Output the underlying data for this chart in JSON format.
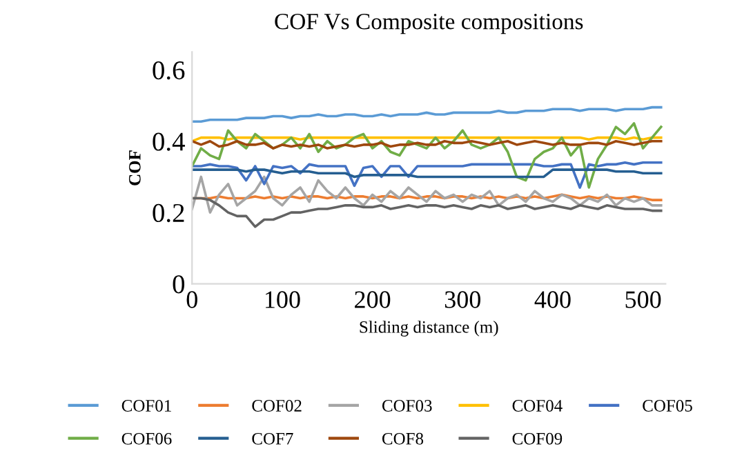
{
  "chart_data": {
    "type": "line",
    "title": "COF Vs Composite compositions",
    "xlabel": "Sliding distance (m)",
    "ylabel": "COF",
    "xlim": [
      0,
      525
    ],
    "xticks": [
      0,
      100,
      200,
      300,
      400,
      500
    ],
    "ylim": [
      0,
      0.65
    ],
    "yticks": [
      0,
      0.2,
      0.4,
      0.6
    ],
    "grid": false,
    "legend": "bottom",
    "marker": "none",
    "line_style": "solid",
    "x": [
      0,
      10,
      20,
      30,
      40,
      50,
      60,
      70,
      80,
      90,
      100,
      110,
      120,
      130,
      140,
      150,
      160,
      170,
      180,
      190,
      200,
      210,
      220,
      230,
      240,
      250,
      260,
      270,
      280,
      290,
      300,
      310,
      320,
      330,
      340,
      350,
      360,
      370,
      380,
      390,
      400,
      410,
      420,
      430,
      440,
      450,
      460,
      470,
      480,
      490,
      500,
      510,
      520
    ],
    "series": [
      {
        "name": "COF01",
        "color": "#5b9bd5",
        "values": [
          0.455,
          0.455,
          0.46,
          0.46,
          0.46,
          0.46,
          0.465,
          0.465,
          0.465,
          0.47,
          0.47,
          0.465,
          0.47,
          0.47,
          0.475,
          0.47,
          0.47,
          0.475,
          0.475,
          0.47,
          0.47,
          0.475,
          0.47,
          0.475,
          0.475,
          0.475,
          0.48,
          0.475,
          0.475,
          0.48,
          0.48,
          0.48,
          0.48,
          0.48,
          0.485,
          0.48,
          0.48,
          0.485,
          0.485,
          0.485,
          0.49,
          0.49,
          0.49,
          0.485,
          0.49,
          0.49,
          0.49,
          0.485,
          0.49,
          0.49,
          0.49,
          0.495,
          0.495
        ]
      },
      {
        "name": "COF02",
        "color": "#ed7d31",
        "values": [
          0.24,
          0.24,
          0.24,
          0.245,
          0.24,
          0.24,
          0.24,
          0.245,
          0.24,
          0.245,
          0.24,
          0.245,
          0.24,
          0.245,
          0.245,
          0.24,
          0.245,
          0.24,
          0.245,
          0.245,
          0.24,
          0.245,
          0.245,
          0.24,
          0.245,
          0.24,
          0.245,
          0.245,
          0.24,
          0.245,
          0.245,
          0.24,
          0.245,
          0.24,
          0.245,
          0.24,
          0.245,
          0.24,
          0.245,
          0.24,
          0.245,
          0.25,
          0.245,
          0.24,
          0.245,
          0.24,
          0.245,
          0.24,
          0.24,
          0.245,
          0.24,
          0.235,
          0.235
        ]
      },
      {
        "name": "COF03",
        "color": "#a5a5a5",
        "values": [
          0.21,
          0.3,
          0.2,
          0.25,
          0.28,
          0.22,
          0.24,
          0.26,
          0.3,
          0.24,
          0.22,
          0.25,
          0.27,
          0.23,
          0.29,
          0.26,
          0.24,
          0.27,
          0.24,
          0.22,
          0.25,
          0.23,
          0.26,
          0.24,
          0.27,
          0.25,
          0.23,
          0.26,
          0.24,
          0.25,
          0.23,
          0.25,
          0.24,
          0.26,
          0.22,
          0.24,
          0.25,
          0.23,
          0.26,
          0.24,
          0.23,
          0.25,
          0.24,
          0.22,
          0.24,
          0.23,
          0.25,
          0.22,
          0.24,
          0.23,
          0.24,
          0.22,
          0.22
        ]
      },
      {
        "name": "COF04",
        "color": "#ffc000",
        "values": [
          0.4,
          0.41,
          0.41,
          0.41,
          0.405,
          0.41,
          0.41,
          0.41,
          0.41,
          0.41,
          0.41,
          0.41,
          0.405,
          0.41,
          0.41,
          0.41,
          0.41,
          0.41,
          0.41,
          0.41,
          0.41,
          0.41,
          0.41,
          0.41,
          0.41,
          0.41,
          0.41,
          0.41,
          0.41,
          0.41,
          0.41,
          0.41,
          0.41,
          0.41,
          0.41,
          0.41,
          0.41,
          0.41,
          0.41,
          0.41,
          0.41,
          0.41,
          0.41,
          0.41,
          0.405,
          0.41,
          0.41,
          0.41,
          0.405,
          0.41,
          0.405,
          0.41,
          0.41
        ]
      },
      {
        "name": "COF05",
        "color": "#4472c4",
        "values": [
          0.33,
          0.33,
          0.335,
          0.33,
          0.33,
          0.325,
          0.29,
          0.33,
          0.28,
          0.33,
          0.325,
          0.33,
          0.31,
          0.335,
          0.33,
          0.33,
          0.33,
          0.33,
          0.275,
          0.325,
          0.33,
          0.3,
          0.33,
          0.33,
          0.3,
          0.33,
          0.33,
          0.33,
          0.33,
          0.33,
          0.33,
          0.335,
          0.335,
          0.335,
          0.335,
          0.335,
          0.335,
          0.335,
          0.335,
          0.33,
          0.33,
          0.335,
          0.335,
          0.27,
          0.335,
          0.33,
          0.335,
          0.335,
          0.34,
          0.335,
          0.34,
          0.34,
          0.34
        ]
      },
      {
        "name": "COF06",
        "color": "#70ad47",
        "values": [
          0.33,
          0.38,
          0.36,
          0.35,
          0.43,
          0.4,
          0.38,
          0.42,
          0.4,
          0.38,
          0.39,
          0.41,
          0.38,
          0.42,
          0.37,
          0.4,
          0.38,
          0.39,
          0.41,
          0.42,
          0.38,
          0.4,
          0.37,
          0.36,
          0.4,
          0.39,
          0.38,
          0.41,
          0.38,
          0.4,
          0.43,
          0.39,
          0.38,
          0.39,
          0.41,
          0.37,
          0.3,
          0.29,
          0.35,
          0.37,
          0.38,
          0.41,
          0.36,
          0.39,
          0.27,
          0.35,
          0.39,
          0.44,
          0.42,
          0.45,
          0.38,
          0.41,
          0.44
        ]
      },
      {
        "name": "COF7",
        "color": "#255e91",
        "values": [
          0.32,
          0.32,
          0.32,
          0.32,
          0.32,
          0.32,
          0.315,
          0.32,
          0.32,
          0.315,
          0.31,
          0.315,
          0.315,
          0.315,
          0.31,
          0.31,
          0.31,
          0.31,
          0.3,
          0.305,
          0.305,
          0.305,
          0.305,
          0.305,
          0.305,
          0.3,
          0.3,
          0.3,
          0.3,
          0.3,
          0.3,
          0.3,
          0.3,
          0.3,
          0.3,
          0.3,
          0.3,
          0.3,
          0.3,
          0.3,
          0.32,
          0.32,
          0.32,
          0.32,
          0.32,
          0.32,
          0.32,
          0.315,
          0.315,
          0.315,
          0.31,
          0.31,
          0.31
        ]
      },
      {
        "name": "COF8",
        "color": "#9e480e",
        "values": [
          0.4,
          0.39,
          0.4,
          0.385,
          0.39,
          0.4,
          0.39,
          0.39,
          0.395,
          0.38,
          0.39,
          0.385,
          0.39,
          0.385,
          0.39,
          0.38,
          0.385,
          0.39,
          0.385,
          0.39,
          0.39,
          0.395,
          0.385,
          0.39,
          0.39,
          0.395,
          0.39,
          0.39,
          0.4,
          0.395,
          0.395,
          0.4,
          0.395,
          0.39,
          0.395,
          0.4,
          0.39,
          0.395,
          0.4,
          0.395,
          0.39,
          0.395,
          0.39,
          0.39,
          0.395,
          0.395,
          0.39,
          0.4,
          0.395,
          0.39,
          0.395,
          0.4,
          0.4
        ]
      },
      {
        "name": "COF09",
        "color": "#636363",
        "values": [
          0.24,
          0.24,
          0.235,
          0.22,
          0.2,
          0.19,
          0.19,
          0.16,
          0.18,
          0.18,
          0.19,
          0.2,
          0.2,
          0.205,
          0.21,
          0.21,
          0.215,
          0.22,
          0.22,
          0.215,
          0.215,
          0.22,
          0.21,
          0.215,
          0.22,
          0.215,
          0.22,
          0.22,
          0.215,
          0.22,
          0.215,
          0.21,
          0.22,
          0.215,
          0.22,
          0.21,
          0.215,
          0.22,
          0.21,
          0.215,
          0.22,
          0.215,
          0.21,
          0.22,
          0.215,
          0.21,
          0.22,
          0.215,
          0.21,
          0.21,
          0.21,
          0.205,
          0.205
        ]
      }
    ]
  }
}
